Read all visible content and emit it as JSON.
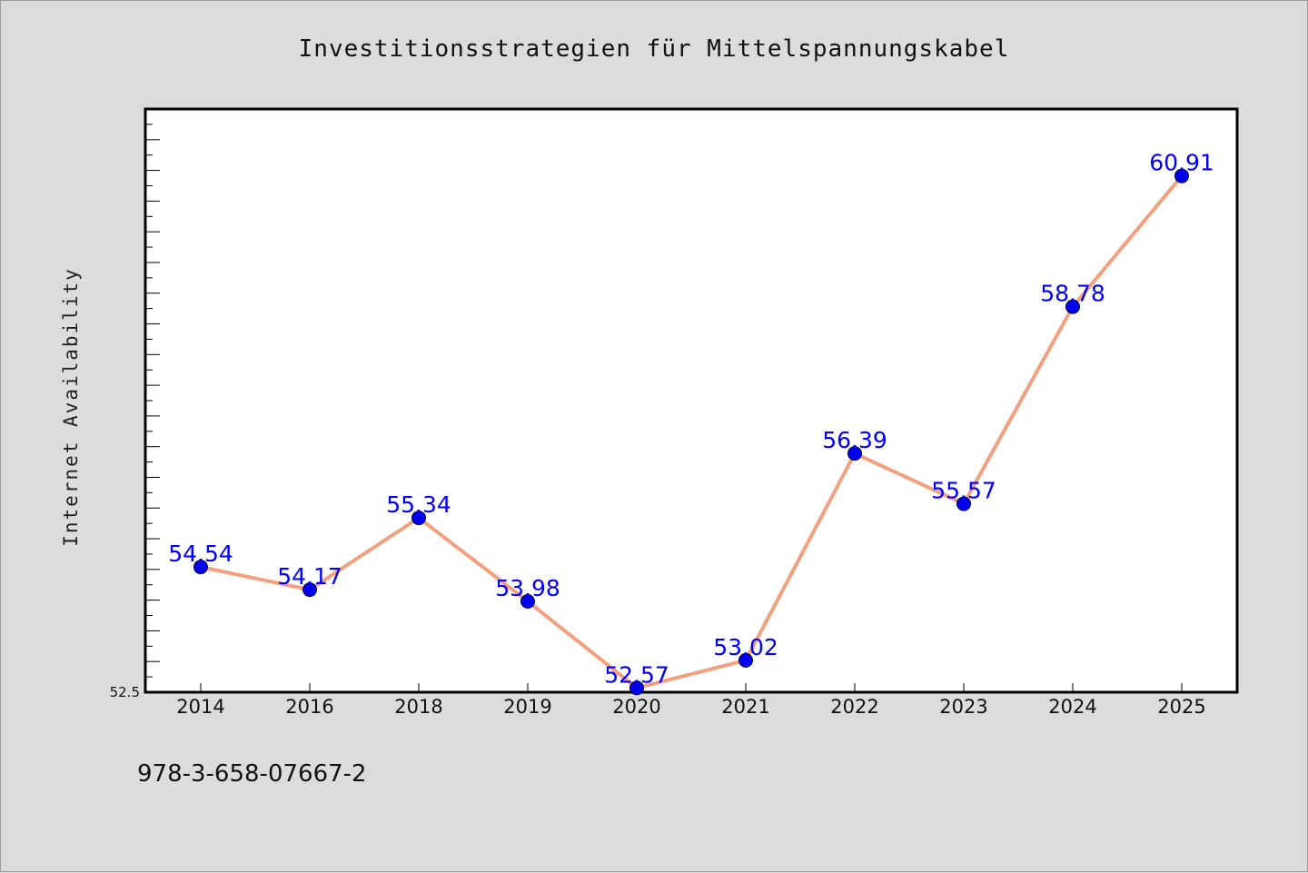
{
  "chart_data": {
    "type": "line",
    "title": "Investitionsstrategien für Mittelspannungskabel",
    "xlabel": "",
    "ylabel": "Internet Availability",
    "categories": [
      "2014",
      "2016",
      "2018",
      "2019",
      "2020",
      "2021",
      "2022",
      "2023",
      "2024",
      "2025"
    ],
    "series": [
      {
        "values": [
          54.54,
          54.17,
          55.34,
          53.98,
          52.57,
          53.02,
          56.39,
          55.57,
          58.78,
          60.91
        ],
        "data_labels": [
          "54.54",
          "54.17",
          "55.34",
          "53.98",
          "52.57",
          "53.02",
          "56.39",
          "55.57",
          "58.78",
          "60.91"
        ]
      }
    ],
    "y_tick_labels": [
      "52.5"
    ],
    "ylim": [
      52.5,
      62.0
    ],
    "grid": false,
    "legend": "none",
    "colors": {
      "line": "#f4a07e",
      "marker": "#0000ee",
      "label": "#0000ff",
      "plot_background": "#ffffff",
      "figure_background": "#dcdcdc"
    }
  },
  "footer": {
    "isbn": "978-3-658-07667-2"
  }
}
